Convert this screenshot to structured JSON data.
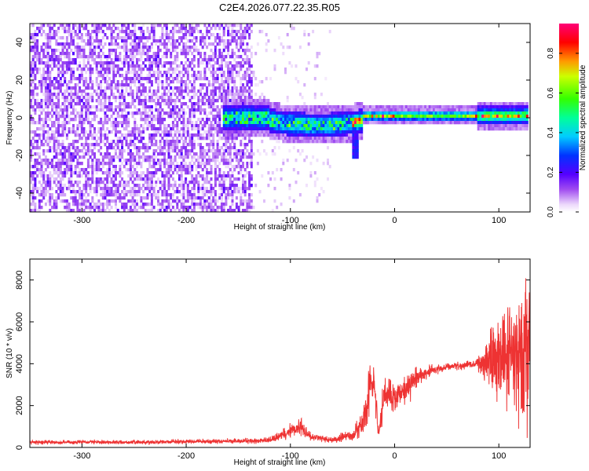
{
  "figure": {
    "title": "C2E4.2026.077.22.35.R05"
  },
  "chart_data": [
    {
      "type": "heatmap",
      "xlabel": "Height of straight line (km)",
      "ylabel": "Frequency (Hz)",
      "xlim": [
        -350,
        130
      ],
      "ylim": [
        -50,
        50
      ],
      "xticks": [
        -300,
        -200,
        -100,
        0,
        100
      ],
      "yticks": [
        -40,
        -20,
        0,
        20,
        40
      ],
      "colorbar": {
        "label": "Normalized spectral amplitude",
        "range": [
          0.0,
          0.95
        ],
        "ticks": [
          0.0,
          0.2,
          0.4,
          0.6,
          0.8
        ],
        "colormap": "rainbow (violet → blue → cyan → green → yellow → red → magenta)"
      },
      "regions": [
        {
          "x": [
            -350,
            -135
          ],
          "freq": [
            -50,
            50
          ],
          "amplitude": [
            0.0,
            0.12
          ],
          "description": "broadband noise"
        },
        {
          "x": [
            -135,
            -60
          ],
          "freq": [
            -50,
            50
          ],
          "amplitude": [
            0.0,
            0.05
          ],
          "description": "sparse noise"
        },
        {
          "x": [
            -165,
            130
          ],
          "freq": [
            -8,
            8
          ],
          "amplitude": [
            0.1,
            0.95
          ],
          "description": "narrow band carrier near 0 Hz"
        }
      ],
      "grid": false
    },
    {
      "type": "line",
      "xlabel": "Height of straight line (km)",
      "ylabel": "SNR (10 * v/v)",
      "xlim": [
        -350,
        130
      ],
      "ylim": [
        0,
        9000
      ],
      "xticks": [
        -300,
        -200,
        -100,
        0,
        100
      ],
      "yticks": [
        0,
        2000,
        4000,
        6000,
        8000
      ],
      "series": [
        {
          "color": "#ee3333",
          "x": [
            -350,
            -300,
            -250,
            -200,
            -150,
            -120,
            -100,
            -90,
            -80,
            -60,
            -40,
            -30,
            -25,
            -20,
            -15,
            -10,
            0,
            10,
            20,
            30,
            40,
            50,
            60,
            70,
            80,
            90,
            100,
            110,
            120,
            130
          ],
          "y": [
            250,
            250,
            250,
            280,
            300,
            330,
            800,
            1000,
            500,
            350,
            600,
            1200,
            2500,
            3500,
            600,
            2600,
            2400,
            2800,
            3300,
            3600,
            3750,
            3850,
            3900,
            3950,
            4000,
            4200,
            4400,
            4500,
            4700,
            5000
          ],
          "spread": [
            80,
            80,
            80,
            90,
            100,
            120,
            300,
            350,
            150,
            120,
            250,
            700,
            900,
            1200,
            300,
            900,
            500,
            600,
            450,
            300,
            200,
            150,
            150,
            150,
            250,
            1300,
            1800,
            2300,
            2700,
            2800
          ]
        }
      ],
      "grid": false
    }
  ]
}
